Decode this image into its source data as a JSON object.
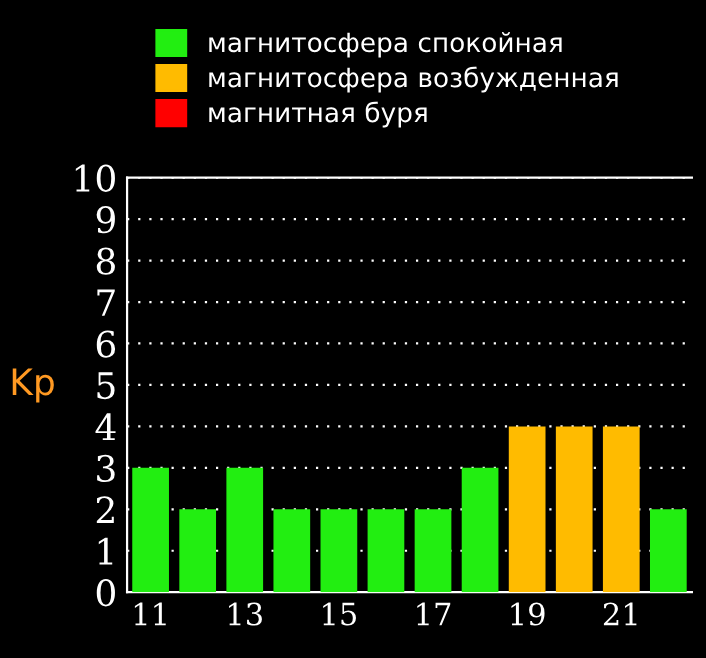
{
  "chart_data": {
    "type": "bar",
    "ylabel": "Kp",
    "categories": [
      "11",
      null,
      "13",
      null,
      "15",
      null,
      "17",
      null,
      "19",
      null,
      "21",
      null
    ],
    "series": [
      {
        "name": "магнитосфера спокойная",
        "color": "#22ee11",
        "values": [
          3,
          2,
          3,
          2,
          2,
          2,
          2,
          3,
          null,
          null,
          null,
          2
        ]
      },
      {
        "name": "магнитосфера возбужденная",
        "color": "#ffbb00",
        "values": [
          null,
          null,
          null,
          null,
          null,
          null,
          null,
          null,
          4,
          4,
          4,
          null
        ]
      },
      {
        "name": "магнитная буря",
        "color": "#ff0000",
        "values": [
          null,
          null,
          null,
          null,
          null,
          null,
          null,
          null,
          null,
          null,
          null,
          null
        ]
      }
    ],
    "ylim": [
      0,
      10
    ],
    "yticks": [
      0,
      1,
      2,
      3,
      4,
      5,
      6,
      7,
      8,
      9,
      10
    ],
    "grid": "y",
    "legend": "top"
  }
}
